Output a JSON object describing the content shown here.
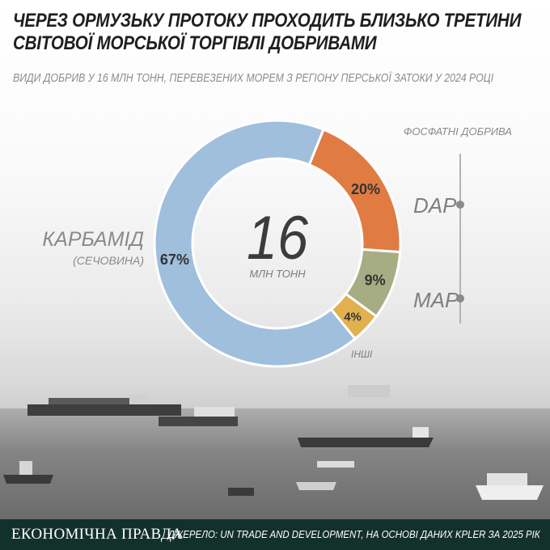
{
  "header": {
    "title_line1": "ЧЕРЕЗ ОРМУЗЬКУ ПРОТОКУ ПРОХОДИТЬ БЛИЗЬКО ТРЕТИНИ",
    "title_line2": "СВІТОВОЇ МОРСЬКОЇ ТОРГІВЛІ ДОБРИВАМИ",
    "subtitle": "ВИДИ ДОБРИВ У 16 МЛН ТОНН, ПЕРЕВЕЗЕНИХ МОРЕМ З РЕГІОНУ ПЕРСЬКОЇ ЗАТОКИ У 2024 РОЦІ"
  },
  "chart_data": {
    "type": "pie",
    "style": "donut",
    "center_value": "16",
    "center_unit": "МЛН ТОНН",
    "slices": [
      {
        "label": "DAP",
        "value": 20,
        "display": "20%",
        "color": "#e07b42"
      },
      {
        "label": "MAP",
        "value": 9,
        "display": "9%",
        "color": "#a7ad83"
      },
      {
        "label": "ІНШІ",
        "value": 4,
        "display": "4%",
        "color": "#e1b04f"
      },
      {
        "label": "КАРБАМІД",
        "sublabel": "(СЕЧОВИНА)",
        "value": 67,
        "display": "67%",
        "color": "#9fbfdc"
      }
    ],
    "group_label": "ФОСФАТНІ ДОБРИВА",
    "group_members": [
      "DAP",
      "MAP"
    ]
  },
  "footer": {
    "logo": "ЕКОНОМІЧНА ПРАВДА",
    "source": "ДЖЕРЕЛО: UN TRADE AND DEVELOPMENT, НА ОСНОВІ ДАНИХ KPLER ЗА 2025 РІК"
  },
  "colors": {
    "footer_bg": "#13312b",
    "label_gray": "#8a8a8a",
    "title": "#1f1f1f"
  }
}
